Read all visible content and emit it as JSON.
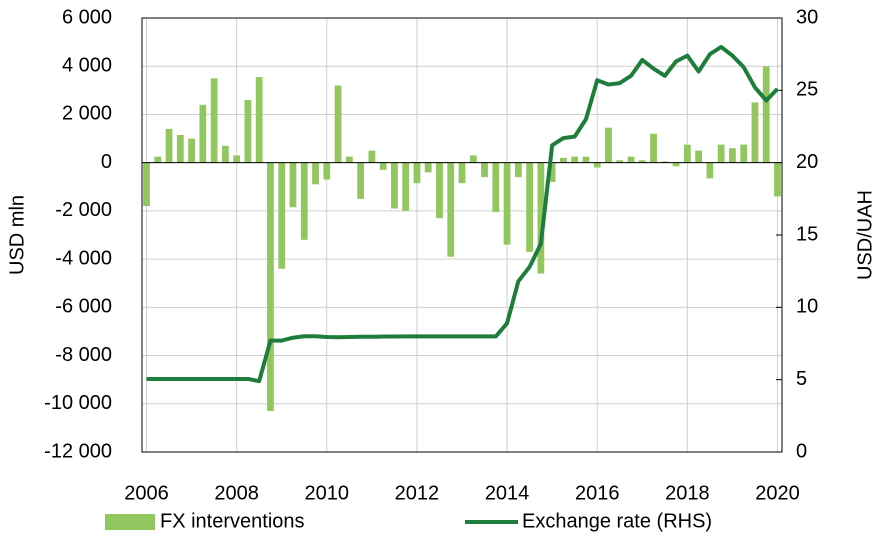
{
  "chart_data": {
    "type": "bar",
    "y_label": "USD mln",
    "y2_label": "USD/UAH",
    "x": [
      2006,
      2006.25,
      2006.5,
      2006.75,
      2007,
      2007.25,
      2007.5,
      2007.75,
      2008,
      2008.25,
      2008.5,
      2008.75,
      2009,
      2009.25,
      2009.5,
      2009.75,
      2010,
      2010.25,
      2010.5,
      2010.75,
      2011,
      2011.25,
      2011.5,
      2011.75,
      2012,
      2012.25,
      2012.5,
      2012.75,
      2013,
      2013.25,
      2013.5,
      2013.75,
      2014,
      2014.25,
      2014.5,
      2014.75,
      2015,
      2015.25,
      2015.5,
      2015.75,
      2016,
      2016.25,
      2016.5,
      2016.75,
      2017,
      2017.25,
      2017.5,
      2017.75,
      2018,
      2018.25,
      2018.5,
      2018.75,
      2019,
      2019.25,
      2019.5,
      2019.75,
      2020
    ],
    "series": [
      {
        "name": "FX interventions",
        "type": "bar",
        "color": "#92c65e",
        "values": [
          -1800,
          250,
          1400,
          1150,
          1000,
          2400,
          3500,
          700,
          300,
          2600,
          3550,
          -10300,
          -4400,
          -1850,
          -3200,
          -900,
          -700,
          3200,
          250,
          -1500,
          500,
          -300,
          -1900,
          -2000,
          -850,
          -400,
          -2300,
          -3900,
          -850,
          300,
          -600,
          -2050,
          -3400,
          -600,
          -3700,
          -4600,
          -800,
          200,
          250,
          250,
          -200,
          1450,
          100,
          250,
          100,
          1200,
          50,
          -150,
          750,
          500,
          -650,
          750,
          600,
          750,
          2500,
          4000,
          -1400
        ]
      },
      {
        "name": "Exchange rate (RHS)",
        "type": "line",
        "axis": "y2",
        "color": "#1e7d3a",
        "values": [
          5.05,
          5.05,
          5.05,
          5.05,
          5.05,
          5.05,
          5.05,
          5.05,
          5.05,
          5.05,
          4.9,
          7.7,
          7.7,
          7.9,
          8.0,
          8.0,
          7.95,
          7.93,
          7.95,
          7.97,
          7.97,
          7.98,
          7.98,
          7.99,
          7.99,
          7.99,
          7.99,
          7.99,
          7.99,
          7.99,
          7.99,
          7.99,
          8.9,
          11.8,
          12.8,
          14.4,
          21.2,
          21.7,
          21.8,
          23.0,
          25.7,
          25.4,
          25.5,
          26.0,
          27.1,
          26.5,
          26.0,
          27.0,
          27.4,
          26.3,
          27.5,
          28.0,
          27.4,
          26.6,
          25.2,
          24.3,
          25.1
        ]
      }
    ],
    "xlim": [
      2005.9,
      2020.1
    ],
    "xticks": [
      2006,
      2008,
      2010,
      2012,
      2014,
      2016,
      2018,
      2020
    ],
    "ylim": [
      -12000,
      6000
    ],
    "yticks": [
      {
        "value": -12000,
        "label": "-12 000"
      },
      {
        "value": -10000,
        "label": "-10 000"
      },
      {
        "value": -8000,
        "label": "-8 000"
      },
      {
        "value": -6000,
        "label": "-6 000"
      },
      {
        "value": -4000,
        "label": "-4 000"
      },
      {
        "value": -2000,
        "label": "-2 000"
      },
      0,
      {
        "value": 2000,
        "label": "2 000"
      },
      {
        "value": 4000,
        "label": "4 000"
      },
      {
        "value": 6000,
        "label": "6 000"
      }
    ],
    "y2lim": [
      0,
      30
    ],
    "y2ticks": [
      0,
      5,
      10,
      15,
      20,
      25,
      30
    ],
    "grid": true
  }
}
